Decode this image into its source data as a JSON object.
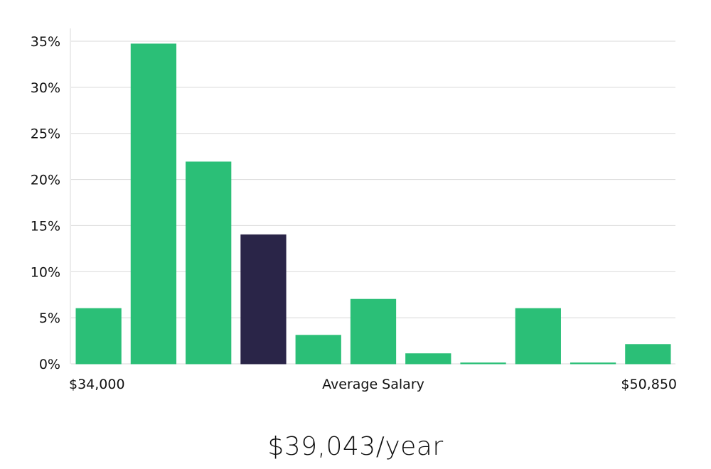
{
  "chart_data": {
    "type": "bar",
    "title": "",
    "xlabel": "Average Salary",
    "ylabel": "",
    "x_range_labels": {
      "start": "$34,000",
      "end": "$50,850"
    },
    "ylim": [
      0,
      35
    ],
    "yticks": [
      0,
      5,
      10,
      15,
      20,
      25,
      30,
      35
    ],
    "ytick_labels": [
      "0%",
      "5%",
      "10%",
      "15%",
      "20%",
      "25%",
      "30%",
      "35%"
    ],
    "values": [
      6,
      34.7,
      21.9,
      14,
      3.1,
      7,
      1.1,
      0.1,
      6,
      0.1,
      2.1
    ],
    "highlight_index": 3,
    "grid": true,
    "legend": "none"
  },
  "summary": {
    "average_salary_text": "$39,043/year"
  },
  "colors": {
    "bar": "#2bbf77",
    "highlight": "#2a2548",
    "grid": "#d9d9d9",
    "text": "#111111"
  }
}
